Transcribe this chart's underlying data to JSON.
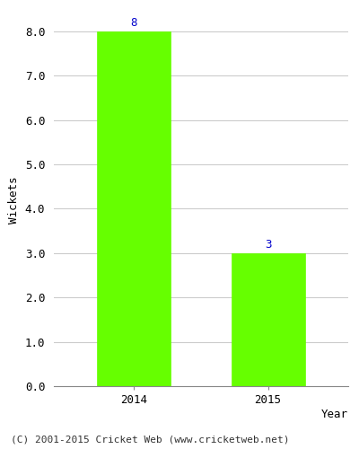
{
  "categories": [
    "2014",
    "2015"
  ],
  "values": [
    8,
    3
  ],
  "bar_color": "#66ff00",
  "bar_edge_color": "#66ff00",
  "ylabel": "Wickets",
  "xlabel": "Year",
  "ylim": [
    0,
    8.4
  ],
  "yticks": [
    0.0,
    1.0,
    2.0,
    3.0,
    4.0,
    5.0,
    6.0,
    7.0,
    8.0
  ],
  "label_color": "#0000cc",
  "label_fontsize": 9,
  "tick_fontsize": 9,
  "ylabel_fontsize": 9,
  "footer_text": "(C) 2001-2015 Cricket Web (www.cricketweb.net)",
  "footer_fontsize": 8,
  "background_color": "#ffffff",
  "plot_background": "#ffffff",
  "grid_color": "#cccccc",
  "bar_width": 0.55
}
